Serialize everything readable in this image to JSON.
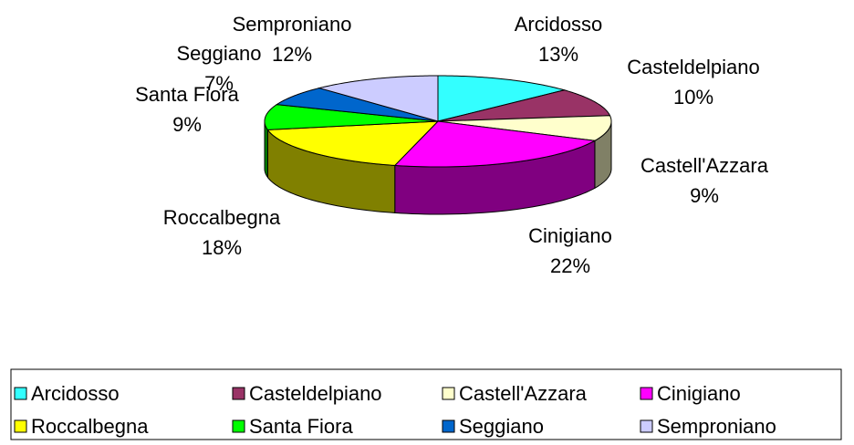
{
  "chart_data": {
    "type": "pie3d",
    "categories": [
      "Arcidosso",
      "Casteldelpiano",
      "Castell'Azzara",
      "Cinigiano",
      "Roccalbegna",
      "Santa Fiora",
      "Seggiano",
      "Semproniano"
    ],
    "values": [
      13,
      10,
      9,
      22,
      18,
      9,
      7,
      12
    ],
    "value_labels": [
      "13%",
      "10%",
      "9%",
      "22%",
      "18%",
      "9%",
      "7%",
      "12%"
    ],
    "colors": [
      "#33ffff",
      "#993366",
      "#ffffcc",
      "#ff00ff",
      "#ffff00",
      "#00ff00",
      "#0066cc",
      "#ccccff"
    ],
    "legend": "bottom"
  }
}
